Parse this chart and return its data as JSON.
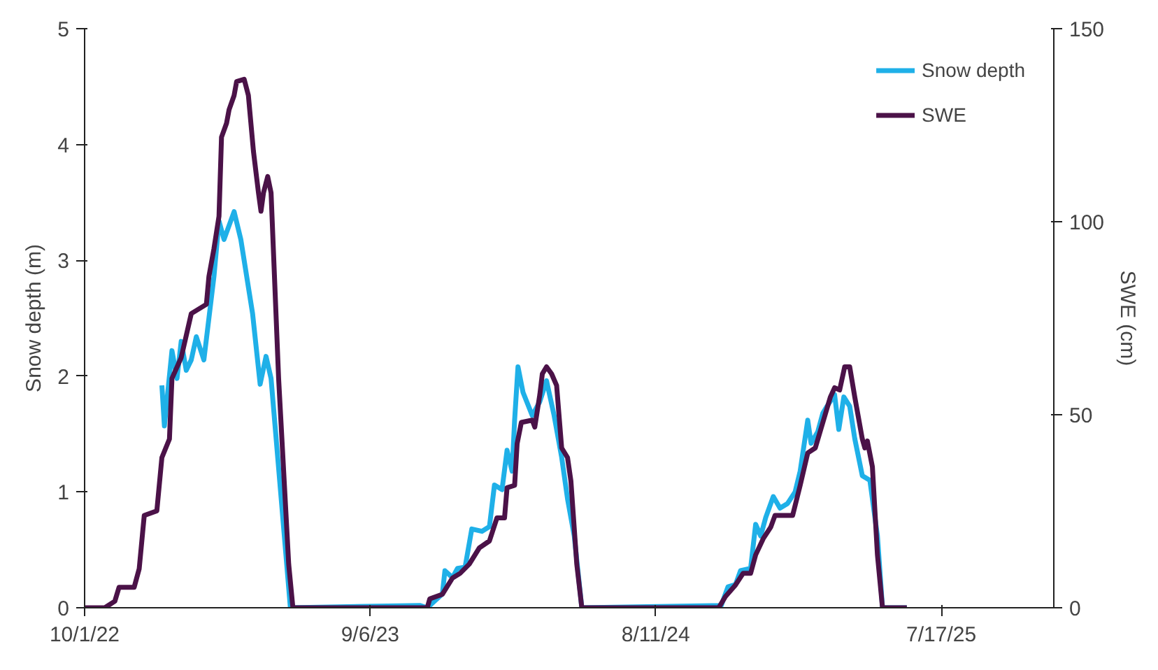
{
  "chart_data": {
    "type": "line",
    "ylabel": "Snow depth (m)",
    "y2label": "SWE (cm)",
    "xlim": [
      "2022-10-01",
      "2025-11-28"
    ],
    "xticks": [
      {
        "value": "2022-10-01",
        "label": "10/1/22"
      },
      {
        "value": "2023-09-06",
        "label": "9/6/23"
      },
      {
        "value": "2024-08-11",
        "label": "8/11/24"
      },
      {
        "value": "2025-07-17",
        "label": "7/17/25"
      }
    ],
    "ylim": [
      0,
      5
    ],
    "yticks": [
      0,
      1,
      2,
      3,
      4,
      5
    ],
    "y2lim": [
      0,
      150
    ],
    "y2ticks": [
      0,
      50,
      100,
      150
    ],
    "grid": false,
    "legend": "top right",
    "line_style": "solid",
    "marker": "none",
    "series": [
      {
        "name": "Snow depth",
        "color": "#1fb0e8",
        "x": [
          "2023-01-01",
          "2023-01-04",
          "2023-01-13",
          "2023-01-19",
          "2023-01-24",
          "2023-01-30",
          "2023-02-05",
          "2023-02-11",
          "2023-02-20",
          "2023-03-04",
          "2023-03-10",
          "2023-03-16",
          "2023-03-28",
          "2023-04-05",
          "2023-04-19",
          "2023-04-28",
          "2023-05-05",
          "2023-05-11",
          "2023-06-03",
          "2023-11-04",
          "2023-11-13",
          "2023-12-01",
          "2023-12-04",
          "2023-12-13",
          "2023-12-19",
          "2023-12-28",
          "2024-01-05",
          "2024-01-17",
          "2024-01-26",
          "2024-02-01",
          "2024-02-10",
          "2024-02-16",
          "2024-02-22",
          "2024-02-25",
          "2024-02-29",
          "2024-03-06",
          "2024-03-17",
          "2024-03-26",
          "2024-04-03",
          "2024-04-12",
          "2024-04-21",
          "2024-04-28",
          "2024-05-06",
          "2024-05-15",
          "2024-10-28",
          "2024-11-05",
          "2024-11-14",
          "2024-11-20",
          "2024-12-02",
          "2024-12-08",
          "2024-12-14",
          "2024-12-20",
          "2024-12-29",
          "2025-01-06",
          "2025-01-15",
          "2025-01-24",
          "2025-01-30",
          "2025-02-08",
          "2025-02-12",
          "2025-02-20",
          "2025-02-26",
          "2025-03-03",
          "2025-03-12",
          "2025-03-17",
          "2025-03-23",
          "2025-03-30",
          "2025-04-05",
          "2025-04-14",
          "2025-04-23",
          "2025-05-02",
          "2025-05-08",
          "2025-06-06"
        ],
        "values": [
          1.92,
          1.57,
          2.22,
          1.98,
          2.3,
          2.05,
          2.14,
          2.34,
          2.14,
          2.86,
          3.34,
          3.18,
          3.42,
          3.18,
          2.54,
          1.93,
          2.17,
          1.98,
          0,
          0.02,
          0,
          0.12,
          0.32,
          0.26,
          0.34,
          0.35,
          0.68,
          0.66,
          0.7,
          1.06,
          1.02,
          1.36,
          1.18,
          1.62,
          2.08,
          1.86,
          1.66,
          1.78,
          1.96,
          1.66,
          1.3,
          0.94,
          0.62,
          0,
          0.02,
          0.18,
          0.2,
          0.32,
          0.34,
          0.72,
          0.62,
          0.78,
          0.96,
          0.86,
          0.9,
          1.0,
          1.18,
          1.62,
          1.42,
          1.52,
          1.68,
          1.74,
          1.84,
          1.54,
          1.82,
          1.74,
          1.46,
          1.14,
          1.1,
          0.62,
          0,
          0
        ]
      },
      {
        "name": "SWE",
        "color": "#4b1248",
        "axis": "y2",
        "x": [
          "2022-10-01",
          "2022-10-25",
          "2022-11-06",
          "2022-11-11",
          "2022-11-29",
          "2022-12-05",
          "2022-12-11",
          "2022-12-26",
          "2023-01-01",
          "2023-01-10",
          "2023-01-13",
          "2023-01-24",
          "2023-02-05",
          "2023-02-23",
          "2023-02-26",
          "2023-03-04",
          "2023-03-10",
          "2023-03-13",
          "2023-03-19",
          "2023-03-22",
          "2023-03-28",
          "2023-03-31",
          "2023-04-09",
          "2023-04-14",
          "2023-04-20",
          "2023-04-26",
          "2023-04-29",
          "2023-05-02",
          "2023-05-07",
          "2023-05-11",
          "2023-05-20",
          "2023-06-01",
          "2023-06-06",
          "2023-11-13",
          "2023-11-16",
          "2023-12-01",
          "2023-12-13",
          "2023-12-22",
          "2024-01-02",
          "2024-01-14",
          "2024-01-26",
          "2024-02-04",
          "2024-02-13",
          "2024-02-16",
          "2024-02-25",
          "2024-02-28",
          "2024-03-04",
          "2024-03-17",
          "2024-03-20",
          "2024-03-26",
          "2024-03-29",
          "2024-04-03",
          "2024-04-09",
          "2024-04-15",
          "2024-04-21",
          "2024-04-28",
          "2024-05-02",
          "2024-05-09",
          "2024-05-15",
          "2024-10-25",
          "2024-11-02",
          "2024-11-14",
          "2024-11-23",
          "2024-12-02",
          "2024-12-08",
          "2024-12-17",
          "2024-12-26",
          "2024-12-31",
          "2025-01-21",
          "2025-01-30",
          "2025-02-08",
          "2025-02-17",
          "2025-02-26",
          "2025-03-07",
          "2025-03-12",
          "2025-03-18",
          "2025-03-24",
          "2025-03-30",
          "2025-04-05",
          "2025-04-14",
          "2025-04-17",
          "2025-04-20",
          "2025-04-26",
          "2025-05-02",
          "2025-05-08",
          "2025-06-06"
        ],
        "values": [
          0,
          0,
          1.7,
          5.3,
          5.3,
          10.1,
          23.9,
          25.1,
          38.9,
          43.7,
          59.4,
          64.8,
          76.2,
          78.6,
          85.8,
          93,
          101.4,
          121.9,
          125.5,
          129,
          132.7,
          136.3,
          136.9,
          132.7,
          118.3,
          107.5,
          102.7,
          107.5,
          111.7,
          107.5,
          59.4,
          11.3,
          0,
          0,
          2.3,
          3.5,
          7.7,
          8.9,
          11.3,
          15.5,
          17.3,
          23.3,
          23.3,
          31.1,
          31.7,
          42.5,
          48.0,
          48.6,
          46.8,
          55.2,
          60.6,
          62.4,
          60.6,
          57.6,
          41.4,
          38.9,
          32.9,
          11.3,
          0,
          0,
          2.9,
          5.9,
          8.9,
          8.9,
          13.7,
          17.9,
          20.9,
          23.9,
          23.9,
          31.7,
          40.1,
          41.4,
          48.0,
          54.6,
          57.0,
          56.4,
          62.4,
          62.4,
          54.6,
          43.7,
          41.4,
          43.2,
          36.5,
          13.7,
          0,
          0
        ]
      }
    ]
  }
}
